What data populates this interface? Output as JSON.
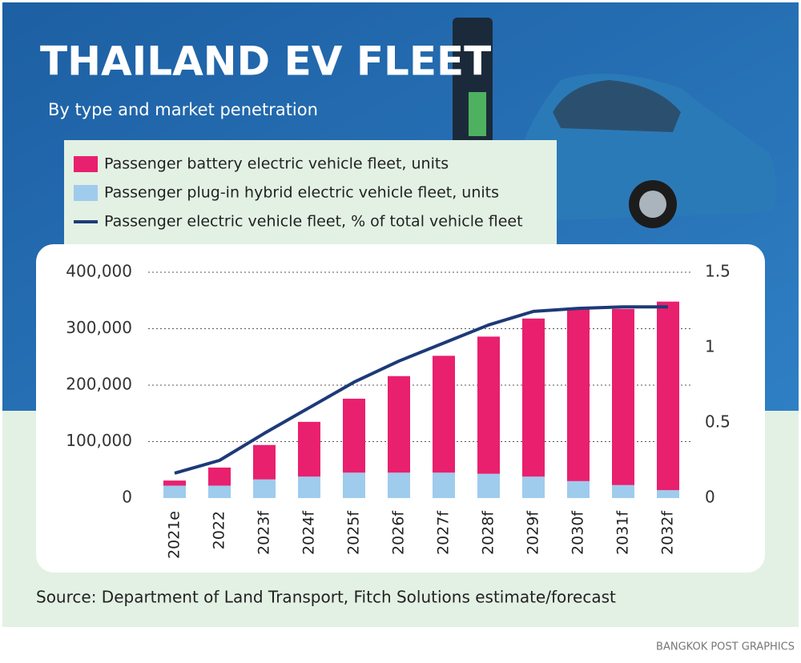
{
  "chart_data": {
    "type": "bar",
    "title": "THAILAND EV FLEET",
    "subtitle": "By type and market penetration",
    "source": "Source: Department of Land Transport, Fitch Solutions estimate/forecast",
    "credit": "BANGKOK POST GRAPHICS",
    "stacked": true,
    "categories": [
      "2021e",
      "2022",
      "2023f",
      "2024f",
      "2025f",
      "2026f",
      "2027f",
      "2028f",
      "2029f",
      "2030f",
      "2031f",
      "2032f"
    ],
    "series": [
      {
        "name": "Passenger battery electric vehicle fleet, units",
        "type": "bar",
        "color": "#e8206e",
        "values": [
          9000,
          32000,
          61000,
          97000,
          131000,
          171000,
          207000,
          243000,
          280000,
          305000,
          312000,
          334000
        ]
      },
      {
        "name": "Passenger plug-in hybrid electric vehicle fleet, units",
        "type": "bar",
        "color": "#9fcbed",
        "values": [
          22000,
          22000,
          33000,
          38000,
          45000,
          45000,
          45000,
          43000,
          38000,
          30000,
          23000,
          14000
        ]
      },
      {
        "name": "Passenger electric vehicle fleet, % of total vehicle fleet",
        "type": "line",
        "axis": "y2",
        "color": "#1d3a78",
        "values": [
          0.165,
          0.25,
          0.43,
          0.6,
          0.77,
          0.91,
          1.03,
          1.15,
          1.24,
          1.26,
          1.27,
          1.27
        ]
      }
    ],
    "ylim": [
      0,
      400000
    ],
    "yticks": [
      0,
      {
        "value": 100000,
        "label": "100,000"
      },
      {
        "value": 200000,
        "label": "200,000"
      },
      {
        "value": 300000,
        "label": "300,000"
      },
      {
        "value": 400000,
        "label": "400,000"
      }
    ],
    "y2lim": [
      0,
      1.5
    ],
    "y2ticks": [
      0,
      0.5,
      1,
      1.5
    ],
    "grid": true
  }
}
